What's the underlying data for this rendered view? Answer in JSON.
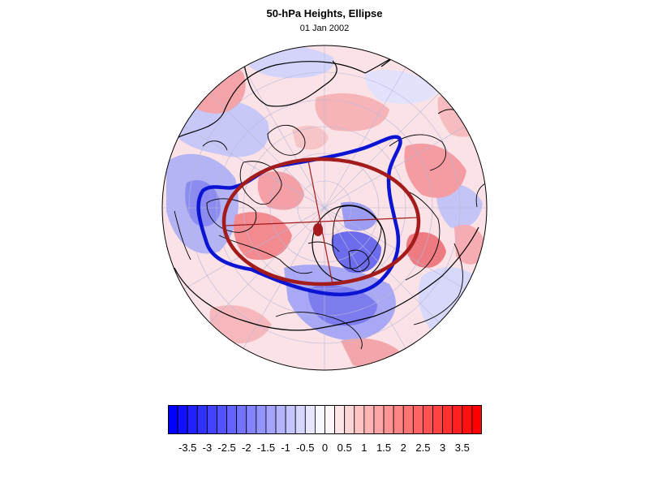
{
  "title": "50-hPa Heights, Ellipse",
  "subtitle": "01 Jan 2002",
  "colors": {
    "negative": "#0000ff",
    "positive": "#ff0000",
    "contour_blue": "#0a14d2",
    "ellipse": "#a31b1b",
    "coastline": "#000000",
    "graticule": "#b8b8d8"
  },
  "colorbar": {
    "tick_labels": [
      "-3.5",
      "-3",
      "-2.5",
      "-2",
      "-1.5",
      "-1",
      "-0.5",
      "0",
      "0.5",
      "1",
      "1.5",
      "2",
      "2.5",
      "3",
      "3.5"
    ],
    "min": -4,
    "max": 4,
    "step": 0.25
  }
}
